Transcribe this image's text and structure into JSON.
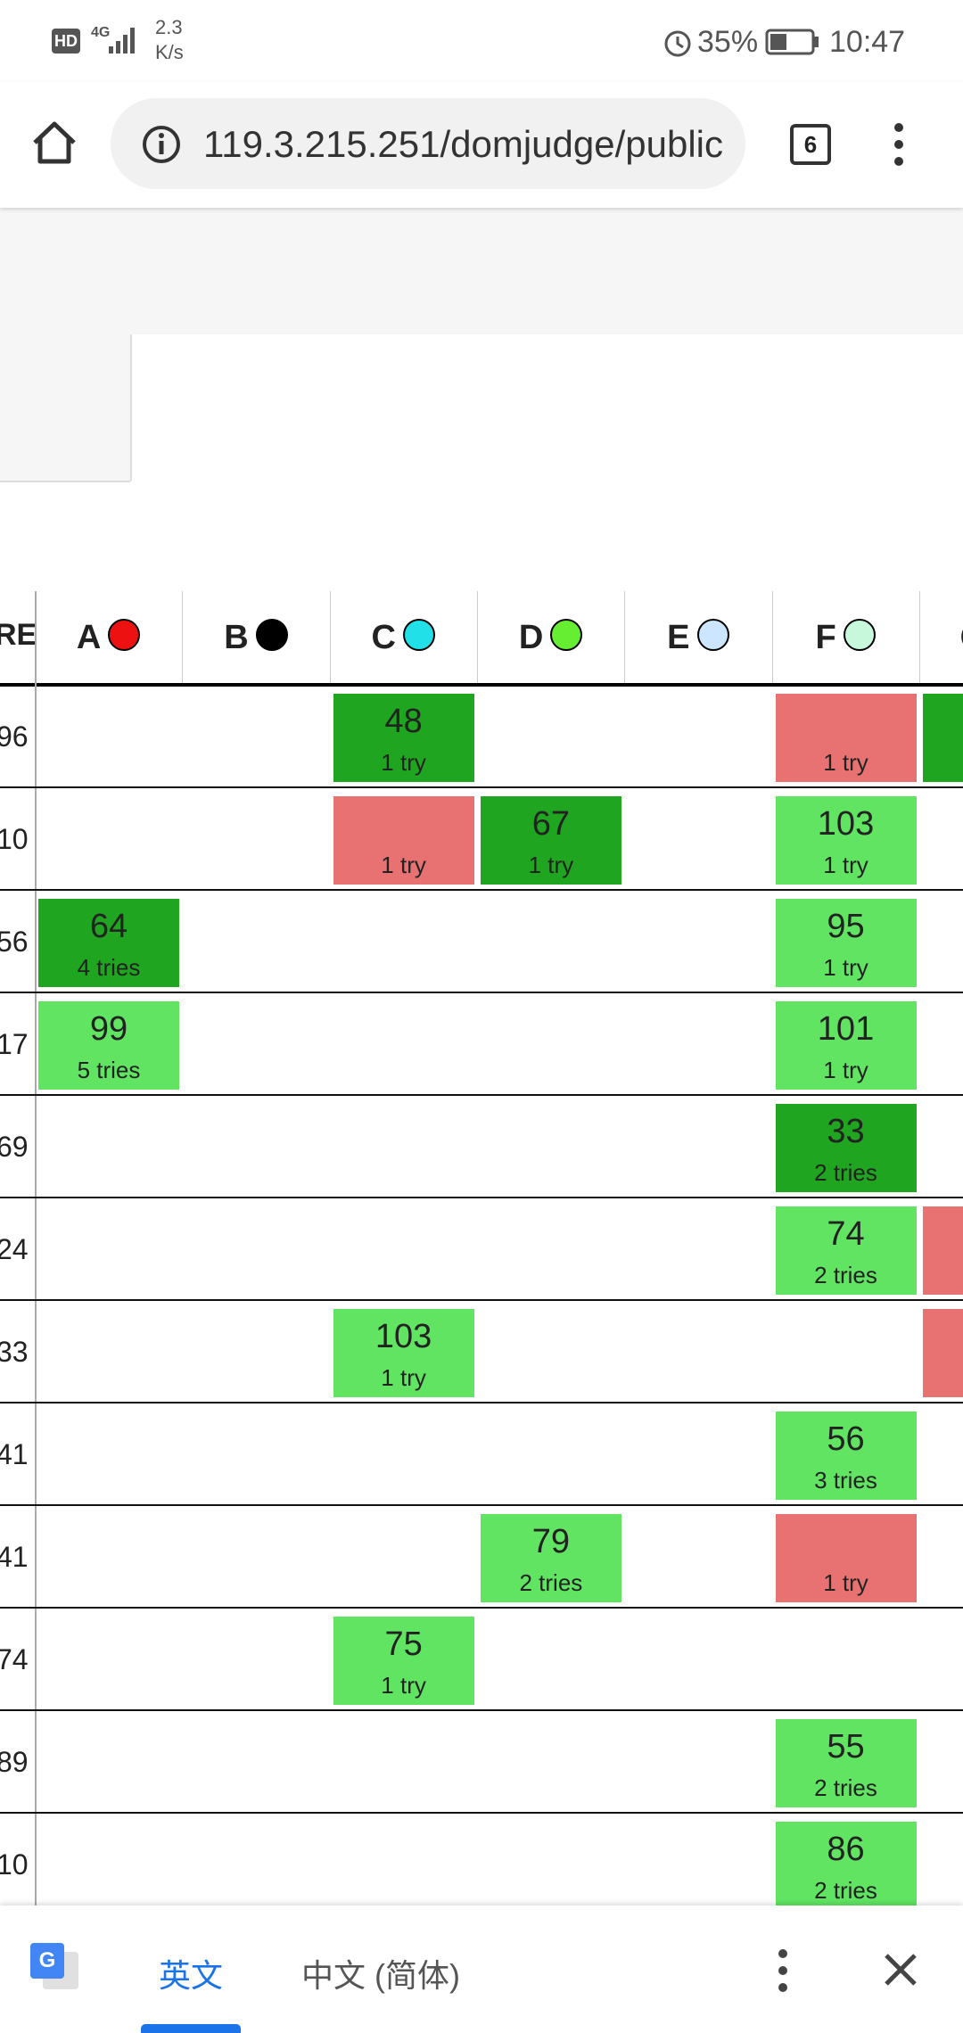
{
  "status_bar": {
    "hd": "HD",
    "network": "4G",
    "speed": "2.3",
    "speed_unit": "K/s",
    "battery": "35%",
    "time": "10:47"
  },
  "browser": {
    "url": "119.3.215.251/domjudge/public",
    "tab_count": "6"
  },
  "scoreboard": {
    "score_header": "RE",
    "problems": [
      {
        "label": "A",
        "color": "#ee1111"
      },
      {
        "label": "B",
        "color": "#000000"
      },
      {
        "label": "C",
        "color": "#22e0e8"
      },
      {
        "label": "D",
        "color": "#66ee33"
      },
      {
        "label": "E",
        "color": "#cce6ff"
      },
      {
        "label": "F",
        "color": "#c8f8dc"
      },
      {
        "label": "G",
        "color": "#ffffff"
      }
    ],
    "rows": [
      {
        "score": "96",
        "cells": [
          null,
          null,
          {
            "color": "#1fa51f",
            "time": 48,
            "tries": "1 try"
          },
          null,
          null,
          {
            "color": "#e87272",
            "tries": "1 try"
          },
          {
            "color": "#1fa51f"
          }
        ]
      },
      {
        "score": "10",
        "cells": [
          null,
          null,
          {
            "color": "#e87272",
            "tries": "1 try"
          },
          {
            "color": "#1fa51f",
            "time": 67,
            "tries": "1 try"
          },
          null,
          {
            "color": "#60e462",
            "time": 103,
            "tries": "1 try"
          },
          null
        ]
      },
      {
        "score": "56",
        "cells": [
          {
            "color": "#1fa51f",
            "time": 64,
            "tries": "4 tries"
          },
          null,
          null,
          null,
          null,
          {
            "color": "#60e462",
            "time": 95,
            "tries": "1 try"
          },
          null
        ]
      },
      {
        "score": "17",
        "cells": [
          {
            "color": "#60e462",
            "time": 99,
            "tries": "5 tries"
          },
          null,
          null,
          null,
          null,
          {
            "color": "#60e462",
            "time": 101,
            "tries": "1 try"
          },
          null
        ]
      },
      {
        "score": "69",
        "cells": [
          null,
          null,
          null,
          null,
          null,
          {
            "color": "#1fa51f",
            "time": 33,
            "tries": "2 tries"
          },
          null
        ]
      },
      {
        "score": "24",
        "cells": [
          null,
          null,
          null,
          null,
          null,
          {
            "color": "#60e462",
            "time": 74,
            "tries": "2 tries"
          },
          {
            "color": "#e87272"
          }
        ]
      },
      {
        "score": "33",
        "cells": [
          null,
          null,
          {
            "color": "#60e462",
            "time": 103,
            "tries": "1 try"
          },
          null,
          null,
          null,
          {
            "color": "#e87272"
          }
        ]
      },
      {
        "score": "41",
        "cells": [
          null,
          null,
          null,
          null,
          null,
          {
            "color": "#60e462",
            "time": 56,
            "tries": "3 tries"
          },
          null
        ]
      },
      {
        "score": "41",
        "cells": [
          null,
          null,
          null,
          {
            "color": "#60e462",
            "time": 79,
            "tries": "2 tries"
          },
          null,
          {
            "color": "#e87272",
            "tries": "1 try"
          },
          null
        ]
      },
      {
        "score": "74",
        "cells": [
          null,
          null,
          {
            "color": "#60e462",
            "time": 75,
            "tries": "1 try"
          },
          null,
          null,
          null,
          null
        ]
      },
      {
        "score": "89",
        "cells": [
          null,
          null,
          null,
          null,
          null,
          {
            "color": "#60e462",
            "time": 55,
            "tries": "2 tries"
          },
          null
        ]
      },
      {
        "score": "10",
        "cells": [
          null,
          null,
          null,
          null,
          null,
          {
            "color": "#60e462",
            "time": 86,
            "tries": "2 tries"
          },
          null
        ]
      }
    ]
  },
  "translate_bar": {
    "source": "英文",
    "target": "中文 (简体)"
  }
}
